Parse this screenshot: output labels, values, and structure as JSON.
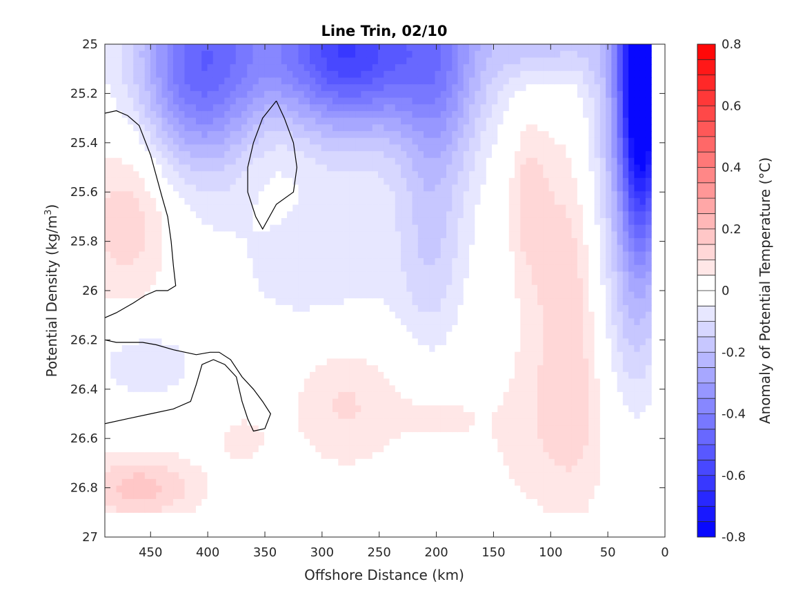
{
  "chart_data": {
    "type": "heatmap",
    "title": "Line Trin, 02/10",
    "xlabel": "Offshore Distance (km)",
    "ylabel_main": "Potential Density (kg/m",
    "ylabel_sup": "3",
    "ylabel_close": ")",
    "colorbar_label": "Anomaly of Potential Temperature (°C)",
    "xlim": [
      490,
      0
    ],
    "ylim": [
      25,
      27
    ],
    "y_reversed": true,
    "xticks": [
      450,
      400,
      350,
      300,
      250,
      200,
      150,
      100,
      50,
      0
    ],
    "xtick_labels": [
      "450",
      "400",
      "350",
      "300",
      "250",
      "200",
      "150",
      "100",
      "50",
      "0"
    ],
    "yticks": [
      25,
      25.2,
      25.4,
      25.6,
      25.8,
      26,
      26.2,
      26.4,
      26.6,
      26.8,
      27
    ],
    "ytick_labels": [
      "25",
      "25.2",
      "25.4",
      "25.6",
      "25.8",
      "26",
      "26.2",
      "26.4",
      "26.6",
      "26.8",
      "27"
    ],
    "colorbar_range": [
      -0.8,
      0.8
    ],
    "colorbar_levels": 32,
    "colorbar_ticks": [
      0.8,
      0.6,
      0.4,
      0.2,
      0,
      -0.2,
      -0.4,
      -0.6,
      -0.8
    ],
    "colorbar_tick_labels": [
      "0.8",
      "0.6",
      "0.4",
      "0.2",
      "0",
      "-0.2",
      "-0.4",
      "-0.6",
      "-0.8"
    ],
    "colormap": {
      "negative": "#0000ff",
      "zero": "#ffffff",
      "positive": "#ff0000"
    },
    "grid": false,
    "contour_level": 0,
    "anomaly_fields": [
      {
        "x": 470,
        "y": 25.7,
        "amp": 0.14,
        "sx": 30,
        "sy": 0.25
      },
      {
        "x": 460,
        "y": 26.8,
        "amp": 0.17,
        "sx": 38,
        "sy": 0.1
      },
      {
        "x": 455,
        "y": 26.3,
        "amp": -0.1,
        "sx": 30,
        "sy": 0.1
      },
      {
        "x": 410,
        "y": 25.1,
        "amp": -0.34,
        "sx": 35,
        "sy": 0.3
      },
      {
        "x": 340,
        "y": 25.45,
        "amp": 0.05,
        "sx": 25,
        "sy": 0.2
      },
      {
        "x": 335,
        "y": 25.0,
        "amp": -0.22,
        "sx": 80,
        "sy": 0.3
      },
      {
        "x": 275,
        "y": 25.05,
        "amp": -0.26,
        "sx": 35,
        "sy": 0.2
      },
      {
        "x": 200,
        "y": 25.15,
        "amp": -0.22,
        "sx": 25,
        "sy": 0.4
      },
      {
        "x": 240,
        "y": 25.0,
        "amp": -0.2,
        "sx": 80,
        "sy": 0.25
      },
      {
        "x": 300,
        "y": 25.9,
        "amp": -0.08,
        "sx": 60,
        "sy": 0.25
      },
      {
        "x": 205,
        "y": 25.9,
        "amp": -0.09,
        "sx": 20,
        "sy": 0.3
      },
      {
        "x": 280,
        "y": 26.45,
        "amp": 0.11,
        "sx": 35,
        "sy": 0.2
      },
      {
        "x": 370,
        "y": 26.6,
        "amp": 0.06,
        "sx": 20,
        "sy": 0.1
      },
      {
        "x": 200,
        "y": 26.5,
        "amp": 0.05,
        "sx": 25,
        "sy": 0.1
      },
      {
        "x": 120,
        "y": 25.6,
        "amp": 0.1,
        "sx": 12,
        "sy": 0.25
      },
      {
        "x": 75,
        "y": 26.0,
        "amp": 0.16,
        "sx": 30,
        "sy": 0.5
      },
      {
        "x": 100,
        "y": 26.6,
        "amp": 0.06,
        "sx": 60,
        "sy": 0.25
      },
      {
        "x": 20,
        "y": 25.1,
        "amp": -1.0,
        "sx": 14,
        "sy": 0.5
      },
      {
        "x": 50,
        "y": 25.5,
        "amp": -0.18,
        "sx": 18,
        "sy": 0.6
      },
      {
        "x": 30,
        "y": 26.2,
        "amp": -0.1,
        "sx": 20,
        "sy": 0.35
      },
      {
        "x": 100,
        "y": 25.0,
        "amp": -0.14,
        "sx": 35,
        "sy": 0.1
      }
    ],
    "filled_region_bottom": 26.9,
    "filled_region_x_range": [
      490,
      12
    ],
    "zero_contours": [
      [
        [
          490,
          25.28
        ],
        [
          480,
          25.27
        ],
        [
          470,
          25.29
        ],
        [
          460,
          25.33
        ],
        [
          450,
          25.45
        ],
        [
          440,
          25.62
        ],
        [
          435,
          25.7
        ],
        [
          432,
          25.8
        ],
        [
          430,
          25.9
        ],
        [
          428,
          25.98
        ],
        [
          435,
          26.0
        ],
        [
          445,
          26.0
        ],
        [
          455,
          26.02
        ],
        [
          465,
          26.05
        ],
        [
          480,
          26.09
        ],
        [
          490,
          26.11
        ]
      ],
      [
        [
          340,
          25.23
        ],
        [
          333,
          25.3
        ],
        [
          325,
          25.4
        ],
        [
          322,
          25.5
        ],
        [
          325,
          25.6
        ],
        [
          340,
          25.65
        ],
        [
          352,
          25.75
        ],
        [
          358,
          25.7
        ],
        [
          365,
          25.6
        ],
        [
          365,
          25.5
        ],
        [
          360,
          25.4
        ],
        [
          352,
          25.3
        ],
        [
          340,
          25.23
        ]
      ],
      [
        [
          490,
          26.54
        ],
        [
          470,
          26.52
        ],
        [
          450,
          26.5
        ],
        [
          430,
          26.48
        ],
        [
          415,
          26.45
        ],
        [
          410,
          26.38
        ],
        [
          405,
          26.3
        ],
        [
          395,
          26.28
        ],
        [
          385,
          26.3
        ],
        [
          375,
          26.35
        ],
        [
          370,
          26.45
        ],
        [
          365,
          26.52
        ],
        [
          360,
          26.57
        ],
        [
          350,
          26.56
        ],
        [
          345,
          26.5
        ],
        [
          352,
          26.45
        ],
        [
          360,
          26.4
        ],
        [
          370,
          26.35
        ],
        [
          380,
          26.28
        ],
        [
          390,
          26.25
        ],
        [
          398,
          26.25
        ],
        [
          410,
          26.26
        ],
        [
          430,
          26.24
        ],
        [
          445,
          26.22
        ],
        [
          457,
          26.21
        ],
        [
          470,
          26.21
        ],
        [
          480,
          26.21
        ],
        [
          490,
          26.2
        ]
      ]
    ]
  }
}
